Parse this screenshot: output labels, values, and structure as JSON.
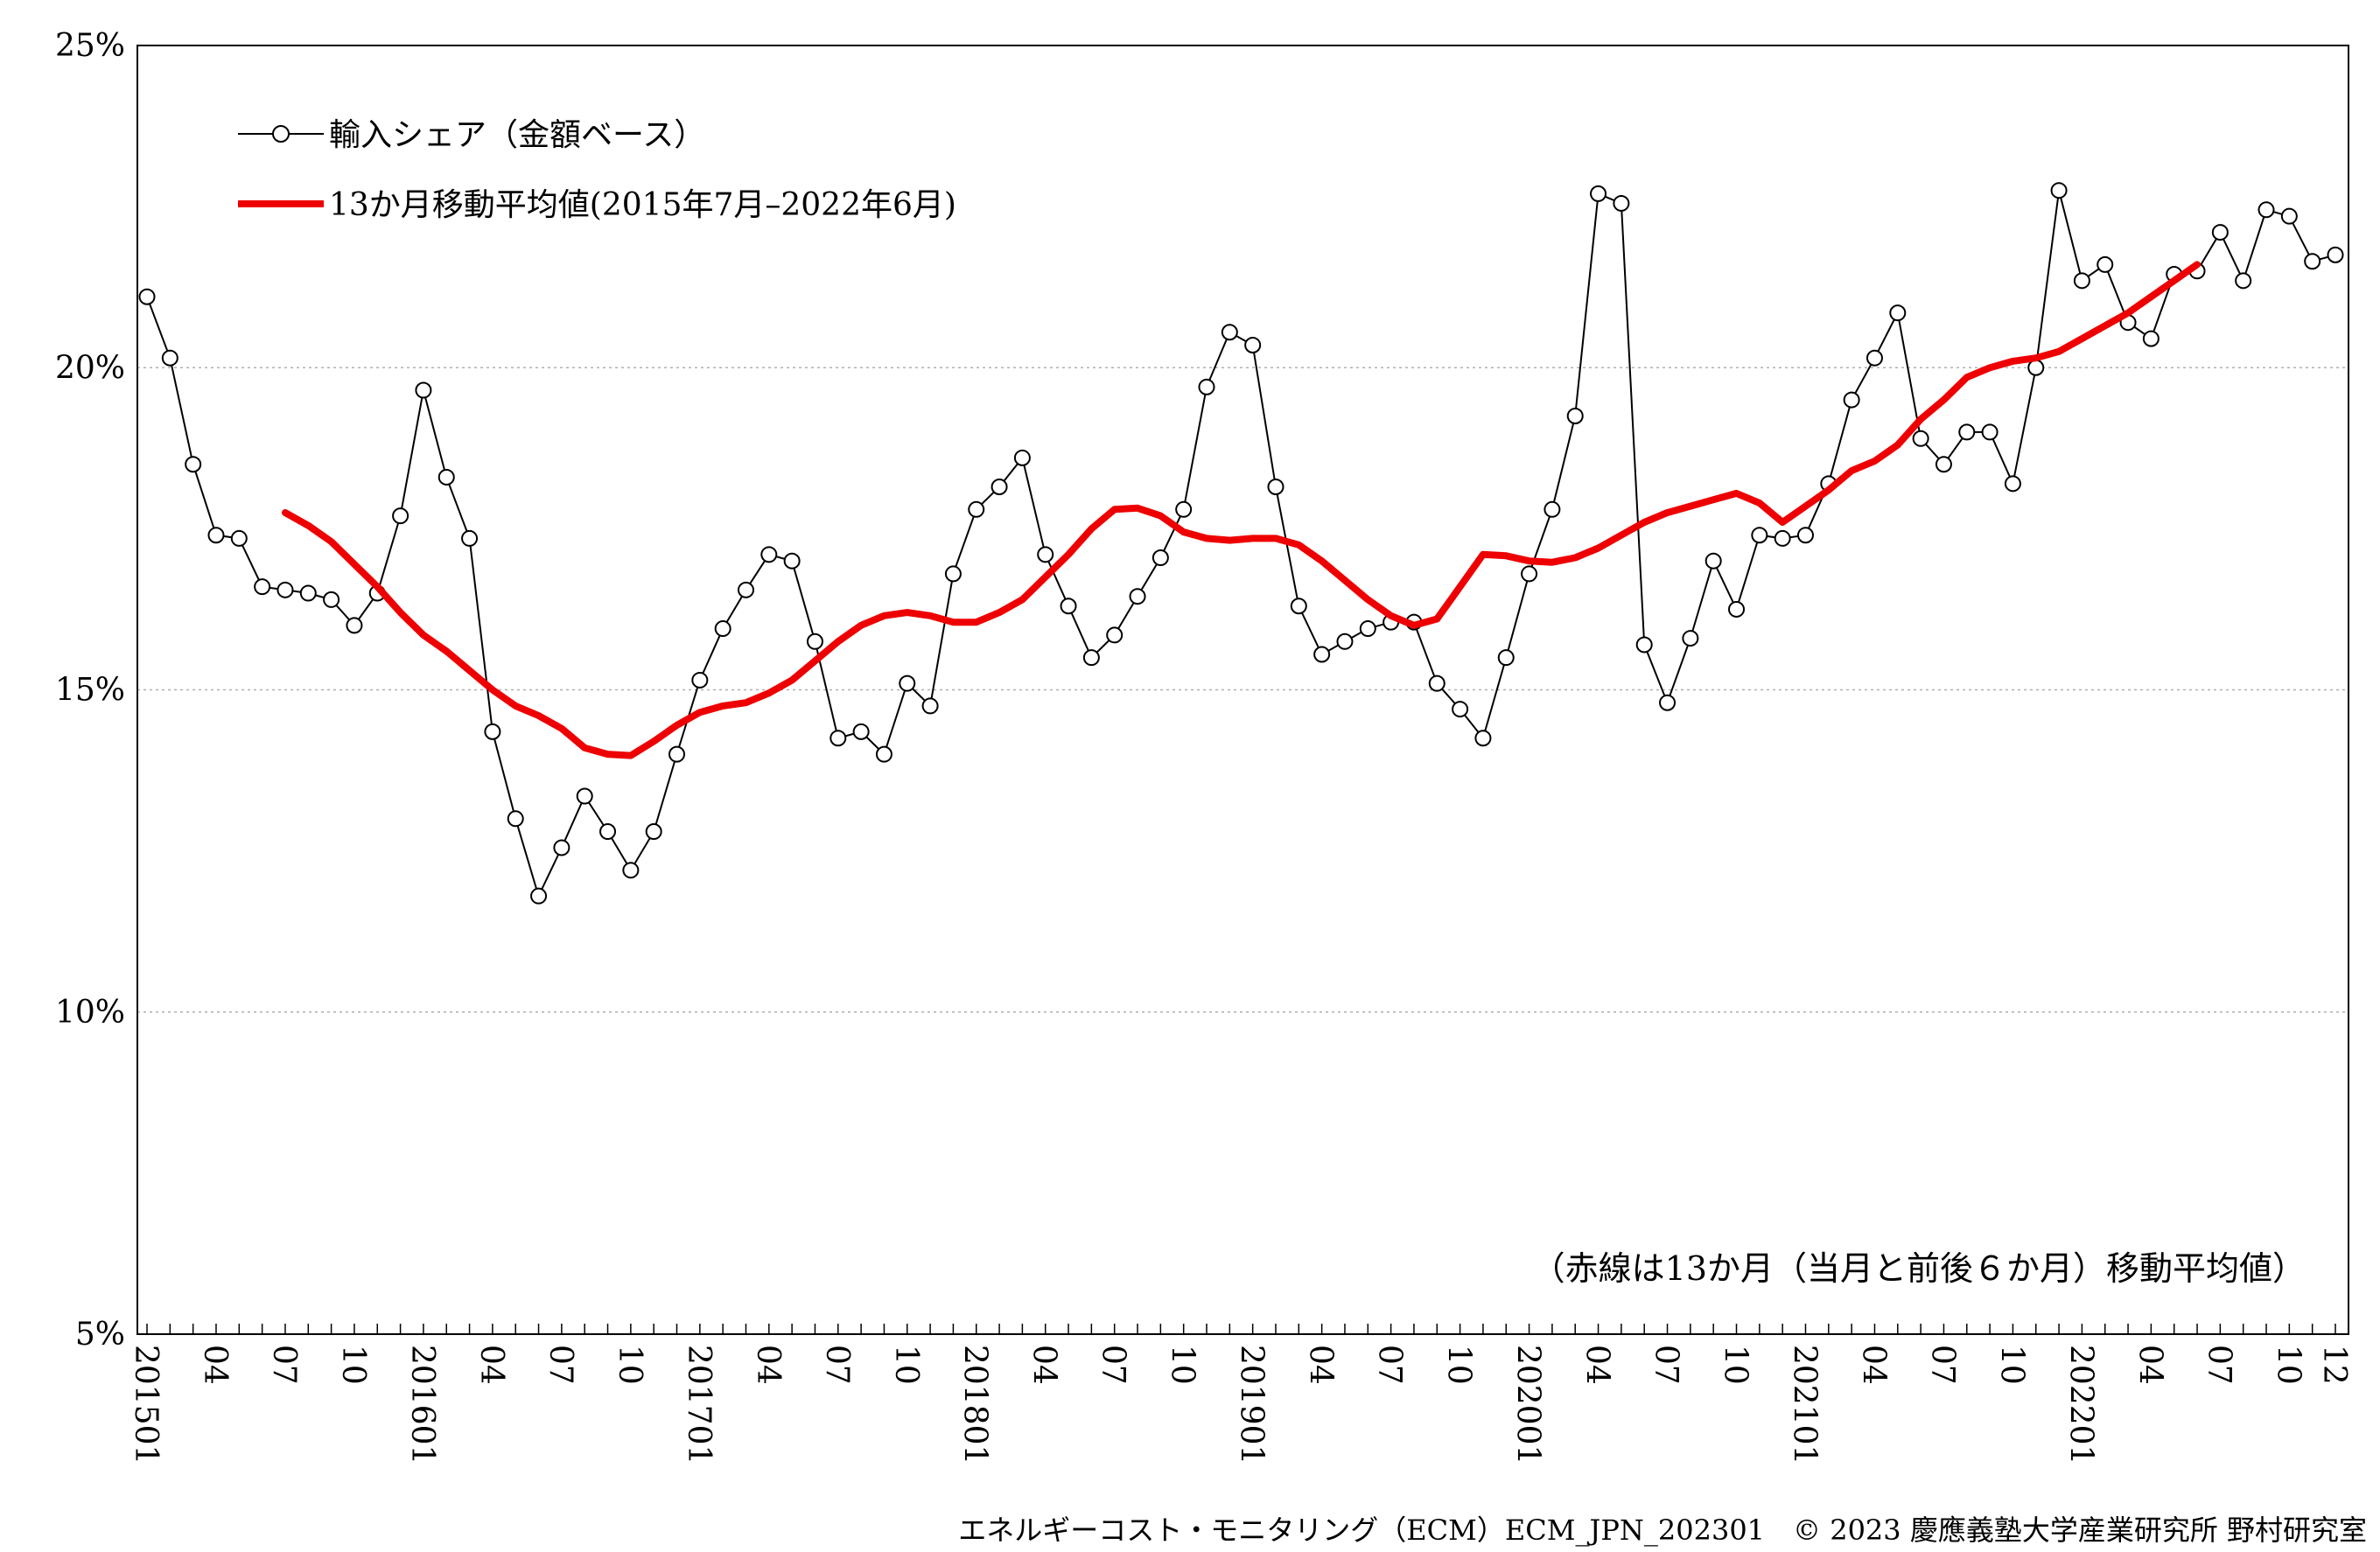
{
  "chart_data": {
    "type": "line",
    "title": "",
    "xlabel": "",
    "ylabel": "",
    "ylim": [
      5,
      25
    ],
    "y_ticks": [
      "5%",
      "10%",
      "15%",
      "20%",
      "25%"
    ],
    "y_tick_values": [
      5,
      10,
      15,
      20,
      25
    ],
    "grid": "horizontal-dotted",
    "x_labels": [
      {
        "index": 0,
        "label": "201501"
      },
      {
        "index": 3,
        "label": "04"
      },
      {
        "index": 6,
        "label": "07"
      },
      {
        "index": 9,
        "label": "10"
      },
      {
        "index": 12,
        "label": "201601"
      },
      {
        "index": 15,
        "label": "04"
      },
      {
        "index": 18,
        "label": "07"
      },
      {
        "index": 21,
        "label": "10"
      },
      {
        "index": 24,
        "label": "201701"
      },
      {
        "index": 27,
        "label": "04"
      },
      {
        "index": 30,
        "label": "07"
      },
      {
        "index": 33,
        "label": "10"
      },
      {
        "index": 36,
        "label": "201801"
      },
      {
        "index": 39,
        "label": "04"
      },
      {
        "index": 42,
        "label": "07"
      },
      {
        "index": 45,
        "label": "10"
      },
      {
        "index": 48,
        "label": "201901"
      },
      {
        "index": 51,
        "label": "04"
      },
      {
        "index": 54,
        "label": "07"
      },
      {
        "index": 57,
        "label": "10"
      },
      {
        "index": 60,
        "label": "202001"
      },
      {
        "index": 63,
        "label": "04"
      },
      {
        "index": 66,
        "label": "07"
      },
      {
        "index": 69,
        "label": "10"
      },
      {
        "index": 72,
        "label": "202101"
      },
      {
        "index": 75,
        "label": "04"
      },
      {
        "index": 78,
        "label": "07"
      },
      {
        "index": 81,
        "label": "10"
      },
      {
        "index": 84,
        "label": "202201"
      },
      {
        "index": 87,
        "label": "04"
      },
      {
        "index": 90,
        "label": "07"
      },
      {
        "index": 93,
        "label": "10"
      },
      {
        "index": 95,
        "label": "12"
      }
    ],
    "series": [
      {
        "name": "輸入シェア（金額ベース）",
        "color": "#000000",
        "marker": "open-circle",
        "start_index": 0,
        "values": [
          21.1,
          20.15,
          18.5,
          17.4,
          17.35,
          16.6,
          16.55,
          16.5,
          16.4,
          16.0,
          16.5,
          17.7,
          19.65,
          18.3,
          17.35,
          14.35,
          13.0,
          11.8,
          12.55,
          13.35,
          12.8,
          12.2,
          12.8,
          14.0,
          15.15,
          15.95,
          16.55,
          17.1,
          17.0,
          15.75,
          14.25,
          14.35,
          14.0,
          15.1,
          14.75,
          16.8,
          17.8,
          18.15,
          18.6,
          17.1,
          16.3,
          15.5,
          15.85,
          16.45,
          17.05,
          17.8,
          19.7,
          20.55,
          20.35,
          18.15,
          16.3,
          15.55,
          15.75,
          15.95,
          16.05,
          16.05,
          15.1,
          14.7,
          14.25,
          15.5,
          16.8,
          17.8,
          19.25,
          22.7,
          22.55,
          15.7,
          14.8,
          15.8,
          17.0,
          16.25,
          17.4,
          17.35,
          17.4,
          18.2,
          19.5,
          20.15,
          20.85,
          18.9,
          18.5,
          19.0,
          19.0,
          18.2,
          20.0,
          22.75,
          21.35,
          21.6,
          20.7,
          20.45,
          21.45,
          21.5,
          22.1,
          21.35,
          22.45,
          22.35,
          21.65,
          21.75
        ]
      },
      {
        "name": "13か月移動平均値(2015年7月–2022年6月)",
        "color": "#ee0000",
        "marker": "none",
        "start_index": 6,
        "values": [
          17.75,
          17.55,
          17.3,
          16.95,
          16.6,
          16.2,
          15.85,
          15.6,
          15.3,
          15.0,
          14.75,
          14.6,
          14.4,
          14.1,
          14.0,
          13.98,
          14.2,
          14.45,
          14.65,
          14.75,
          14.8,
          14.95,
          15.15,
          15.45,
          15.75,
          16.0,
          16.15,
          16.2,
          16.15,
          16.05,
          16.05,
          16.2,
          16.4,
          16.75,
          17.1,
          17.5,
          17.8,
          17.82,
          17.7,
          17.45,
          17.35,
          17.32,
          17.35,
          17.35,
          17.25,
          17.0,
          16.7,
          16.4,
          16.15,
          16.0,
          16.1,
          16.6,
          17.1,
          17.08,
          17.0,
          16.98,
          17.05,
          17.2,
          17.4,
          17.6,
          17.75,
          17.85,
          17.95,
          18.05,
          17.9,
          17.6,
          17.85,
          18.1,
          18.4,
          18.55,
          18.8,
          19.2,
          19.5,
          19.85,
          20.0,
          20.1,
          20.15,
          20.25,
          20.45,
          20.65,
          20.85,
          21.1,
          21.35,
          21.6
        ]
      }
    ],
    "legend": {
      "placement": "top-left",
      "items": [
        "輸入シェア（金額ベース）",
        "13か月移動平均値(2015年7月–2022年6月)"
      ]
    },
    "annotation": "（赤線は13か月（当月と前後６か月）移動平均値）"
  },
  "footer": {
    "text": "エネルギーコスト・モニタリング（ECM）ECM_JPN_202301　© 2023 慶應義塾大学産業研究所 野村研究室"
  }
}
